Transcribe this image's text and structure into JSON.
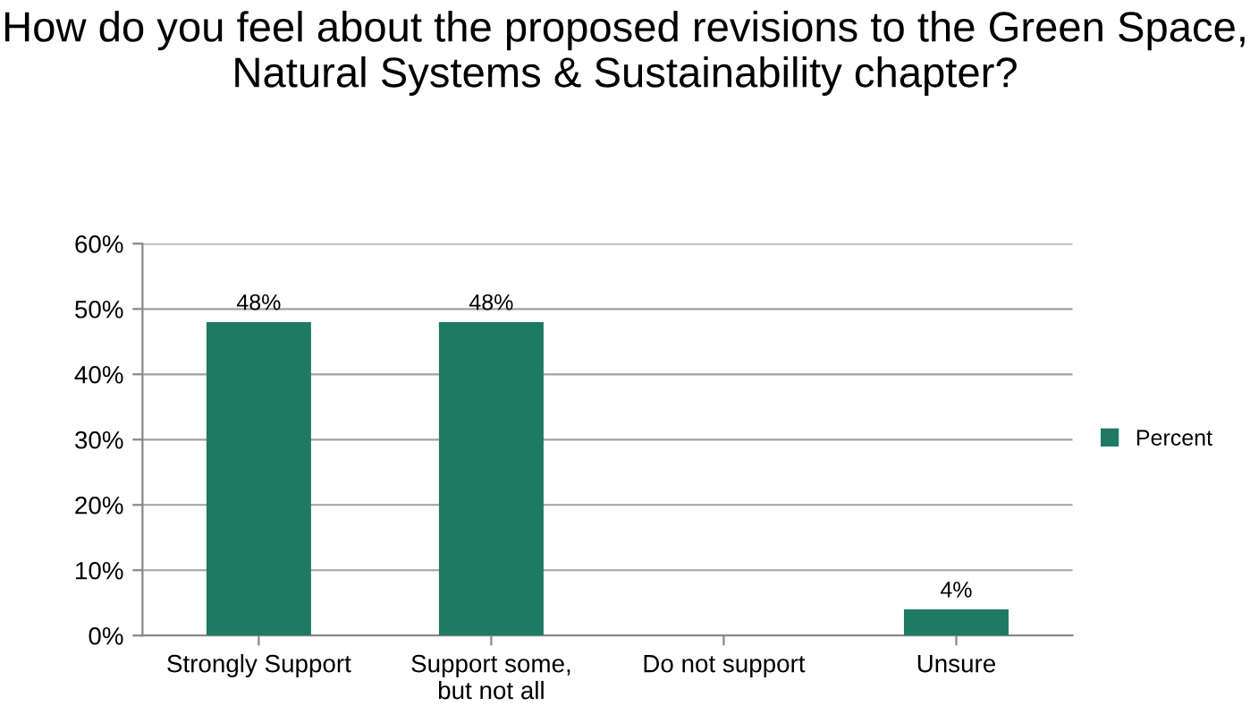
{
  "chart_data": {
    "type": "bar",
    "title": "How do you feel about the proposed revisions to the Green Space, Natural Systems & Sustainability chapter?",
    "categories": [
      "Strongly Support",
      "Support some,\nbut not all",
      "Do not support",
      "Unsure"
    ],
    "series": [
      {
        "name": "Percent",
        "color": "#1e7a62",
        "values": [
          48,
          48,
          0,
          4
        ],
        "value_labels": [
          "48%",
          "48%",
          null,
          "4%"
        ]
      }
    ],
    "ylim": [
      0,
      60
    ],
    "yticks": [
      {
        "value": 0,
        "label": "0%"
      },
      {
        "value": 10,
        "label": "10%"
      },
      {
        "value": 20,
        "label": "20%"
      },
      {
        "value": 30,
        "label": "30%"
      },
      {
        "value": 40,
        "label": "40%"
      },
      {
        "value": 50,
        "label": "50%"
      },
      {
        "value": 60,
        "label": "60%"
      }
    ],
    "grid": "y",
    "legend": "right"
  }
}
